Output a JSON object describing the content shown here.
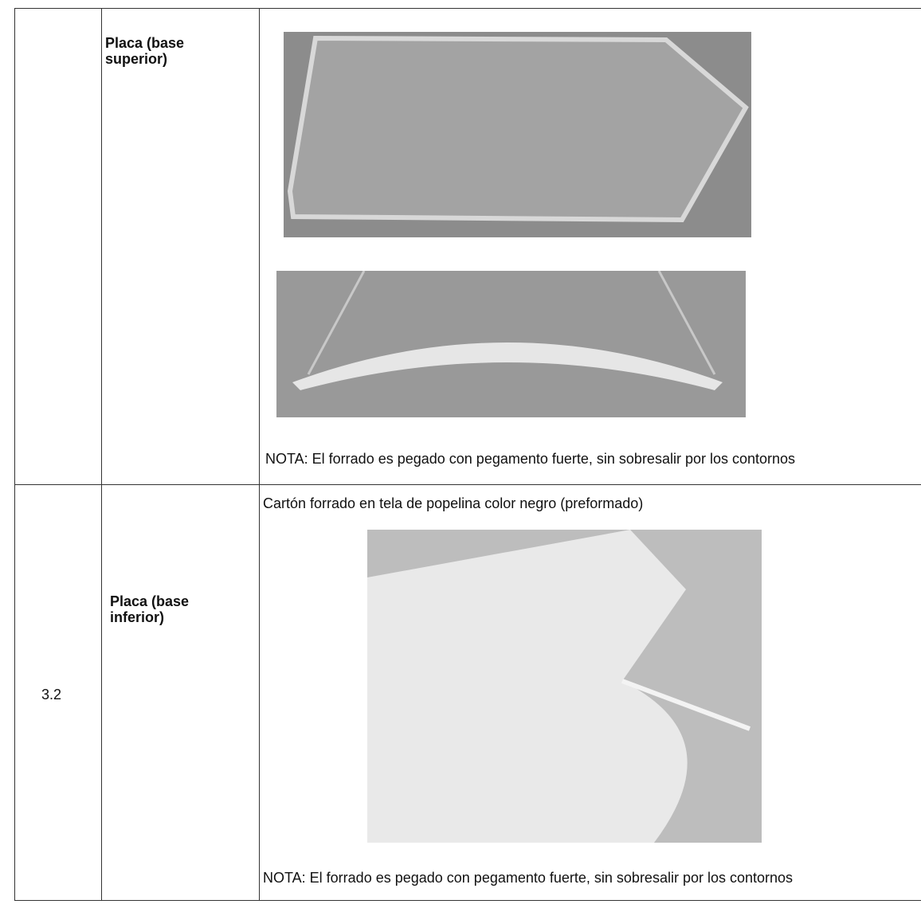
{
  "table": {
    "rows": [
      {
        "label": "Placa (base superior)",
        "note": "NOTA: El forrado es pegado con pegamento fuerte, sin sobresalir por los contornos"
      },
      {
        "number": "3.2",
        "label": "Placa (base inferior)",
        "caption": "Cartón forrado en tela de popelina color negro (preformado)",
        "note": "NOTA: El forrado es pegado con pegamento fuerte, sin sobresalir por los contornos"
      }
    ]
  }
}
